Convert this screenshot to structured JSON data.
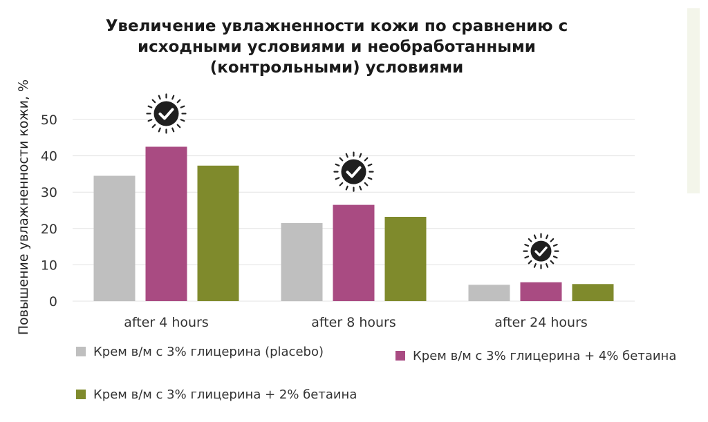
{
  "chart_data": {
    "type": "bar",
    "title_lines": [
      "Увеличение увлажненности кожи по сравнению с",
      "исходными условиями и необработанными",
      "(контрольными) условиями"
    ],
    "ylabel": "Повышение увлажненности кожи, %",
    "ylim": [
      0,
      50
    ],
    "yticks": [
      0,
      10,
      20,
      30,
      40,
      50
    ],
    "grid": true,
    "categories": [
      "after 4 hours",
      "after 8 hours",
      "after 24 hours"
    ],
    "series": [
      {
        "name": "Крем в/м с 3% глицерина (placebo)",
        "color": "#bfbfbf",
        "values": [
          34.5,
          21.5,
          4.5
        ]
      },
      {
        "name": "Крем в/м с 3% глицерина + 4% бетаина",
        "color": "#a94b82",
        "values": [
          42.5,
          26.5,
          5.2
        ]
      },
      {
        "name": "Крем в/м с 3% глицерина + 2% бетаина",
        "color": "#7f8a2c",
        "values": [
          37.3,
          23.2,
          4.7
        ]
      }
    ],
    "significance_markers": [
      "checkmark-badge-icon",
      "checkmark-badge-icon",
      "checkmark-badge-icon"
    ]
  }
}
